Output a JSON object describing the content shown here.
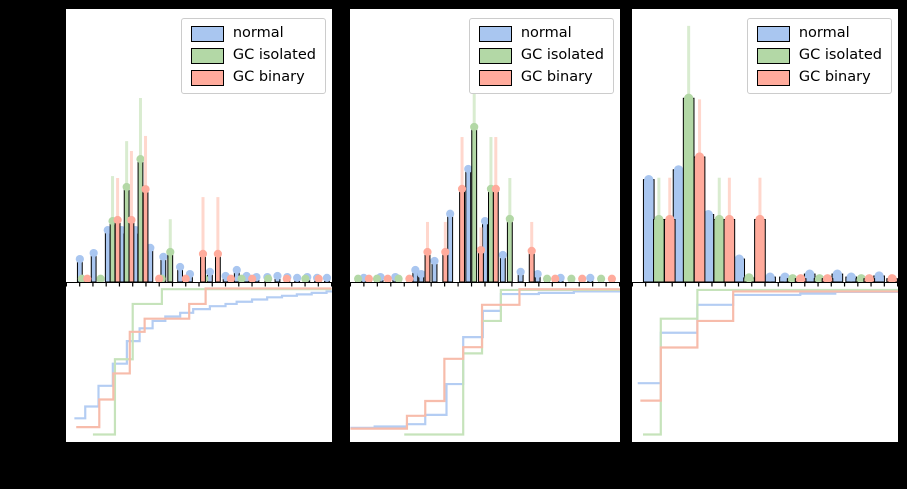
{
  "figure": {
    "background": "#000000",
    "axes_background": "#ffffff",
    "spine_color": "#000000",
    "n_panels": 3,
    "rows_per_panel": [
      "histogram with errorbars",
      "ecdf step plot"
    ],
    "visible_tick_labels": "none (labels hidden against black background)",
    "x_ticks_per_panel": 21
  },
  "legend": {
    "items": [
      {
        "label": "normal",
        "color": "#a9c6f0"
      },
      {
        "label": "GC isolated",
        "color": "#b3d8a6"
      },
      {
        "label": "GC binary",
        "color": "#ffab9c"
      }
    ]
  },
  "series_styles": {
    "normal": {
      "bar": "#a9c6f0",
      "err": "#cfe0f8",
      "line": "#b4cdf3"
    },
    "gc_isolated": {
      "bar": "#b3d8a6",
      "err": "#d9ecd0",
      "line": "#c6e3bb"
    },
    "gc_binary": {
      "bar": "#ffab9c",
      "err": "#ffd7cd",
      "line": "#f7bcab"
    },
    "bar_edge": "#000000"
  },
  "chart_data": [
    {
      "type": "bar",
      "subtype": "histogram_with_errorbars_plus_ecdf",
      "title": "",
      "x_axis": {
        "range": [
          0,
          1
        ],
        "units": "normalized panel fraction"
      },
      "hist": {
        "ylim": [
          0,
          1
        ],
        "bar_width": 0.018,
        "series": {
          "normal": [
            [
              0.052,
              0.084,
              0
            ],
            [
              0.104,
              0.106,
              0
            ],
            [
              0.157,
              0.19,
              0
            ],
            [
              0.209,
              0.19,
              0
            ],
            [
              0.261,
              0.19,
              0
            ],
            [
              0.317,
              0.125,
              0
            ],
            [
              0.366,
              0.092,
              0
            ],
            [
              0.429,
              0.055,
              0
            ],
            [
              0.466,
              0.029,
              0
            ],
            [
              0.541,
              0.037,
              0
            ],
            [
              0.6,
              0.022,
              0
            ],
            [
              0.642,
              0.044,
              0
            ],
            [
              0.679,
              0.022,
              0
            ],
            [
              0.716,
              0.018,
              0
            ],
            [
              0.757,
              0.018,
              0
            ],
            [
              0.795,
              0.022,
              0
            ],
            [
              0.832,
              0.018,
              0
            ],
            [
              0.869,
              0.015,
              0
            ],
            [
              0.907,
              0.018,
              0
            ],
            [
              0.944,
              0.015,
              0
            ],
            [
              0.981,
              0.015,
              0
            ]
          ],
          "gc_isolated": [
            [
              0.06,
              0.012,
              0
            ],
            [
              0.13,
              0.012,
              0
            ],
            [
              0.175,
              0.223,
              0.388
            ],
            [
              0.228,
              0.348,
              0.516
            ],
            [
              0.28,
              0.45,
              0.674
            ],
            [
              0.36,
              0.012,
              0
            ],
            [
              0.392,
              0.11,
              0.23
            ],
            [
              0.52,
              0.012,
              0
            ],
            [
              0.66,
              0.012,
              0
            ],
            [
              0.76,
              0.012,
              0
            ],
            [
              0.9,
              0.012,
              0
            ]
          ],
          "gc_binary": [
            [
              0.08,
              0.012,
              0
            ],
            [
              0.194,
              0.227,
              0.381
            ],
            [
              0.246,
              0.227,
              0.48
            ],
            [
              0.299,
              0.34,
              0.535
            ],
            [
              0.35,
              0.012,
              0
            ],
            [
              0.45,
              0.012,
              0
            ],
            [
              0.515,
              0.103,
              0.311
            ],
            [
              0.571,
              0.103,
              0.311
            ],
            [
              0.62,
              0.012,
              0
            ],
            [
              0.7,
              0.012,
              0
            ],
            [
              0.83,
              0.012,
              0
            ],
            [
              0.95,
              0.012,
              0
            ]
          ]
        }
      },
      "cdf": {
        "ylim": [
          0,
          1
        ],
        "series": {
          "normal": [
            [
              0.03,
              0.11
            ],
            [
              0.071,
              0.19
            ],
            [
              0.121,
              0.33
            ],
            [
              0.175,
              0.48
            ],
            [
              0.228,
              0.633
            ],
            [
              0.276,
              0.72
            ],
            [
              0.325,
              0.77
            ],
            [
              0.373,
              0.8
            ],
            [
              0.429,
              0.825
            ],
            [
              0.478,
              0.85
            ],
            [
              0.541,
              0.87
            ],
            [
              0.6,
              0.885
            ],
            [
              0.642,
              0.9
            ],
            [
              0.7,
              0.915
            ],
            [
              0.757,
              0.93
            ],
            [
              0.813,
              0.94
            ],
            [
              0.869,
              0.95
            ],
            [
              0.925,
              0.96
            ],
            [
              0.981,
              0.97
            ],
            [
              1.0,
              0.975
            ]
          ],
          "gc_isolated": [
            [
              0.1,
              0.0
            ],
            [
              0.183,
              0.51
            ],
            [
              0.25,
              0.885
            ],
            [
              0.36,
              0.985
            ],
            [
              1.0,
              0.985
            ]
          ],
          "gc_binary": [
            [
              0.037,
              0.05
            ],
            [
              0.124,
              0.2375
            ],
            [
              0.177,
              0.414
            ],
            [
              0.239,
              0.696
            ],
            [
              0.295,
              0.785
            ],
            [
              0.463,
              0.885
            ],
            [
              0.525,
              0.99
            ],
            [
              1.0,
              0.99
            ]
          ]
        }
      }
    },
    {
      "type": "bar",
      "subtype": "histogram_with_errorbars_plus_ecdf",
      "title": "",
      "x_axis": {
        "range": [
          0,
          1
        ],
        "units": "normalized panel fraction"
      },
      "hist": {
        "ylim": [
          0,
          1
        ],
        "bar_width": 0.018,
        "series": {
          "normal": [
            [
              0.051,
              0.015,
              0
            ],
            [
              0.113,
              0.018,
              0
            ],
            [
              0.168,
              0.018,
              0
            ],
            [
              0.242,
              0.044,
              0
            ],
            [
              0.264,
              0.029,
              0
            ],
            [
              0.313,
              0.077,
              0
            ],
            [
              0.371,
              0.25,
              0
            ],
            [
              0.438,
              0.414,
              0
            ],
            [
              0.5,
              0.223,
              0
            ],
            [
              0.566,
              0.099,
              0
            ],
            [
              0.632,
              0.037,
              0
            ],
            [
              0.695,
              0.029,
              0
            ],
            [
              0.78,
              0.015,
              0
            ],
            [
              0.89,
              0.015,
              0
            ]
          ],
          "gc_isolated": [
            [
              0.03,
              0.012,
              0
            ],
            [
              0.1,
              0.012,
              0
            ],
            [
              0.18,
              0.012,
              0
            ],
            [
              0.46,
              0.568,
              0.7
            ],
            [
              0.522,
              0.341,
              0.531
            ],
            [
              0.592,
              0.231,
              0.381
            ],
            [
              0.73,
              0.012,
              0
            ],
            [
              0.82,
              0.012,
              0
            ],
            [
              0.93,
              0.012,
              0
            ]
          ],
          "gc_binary": [
            [
              0.07,
              0.012,
              0
            ],
            [
              0.14,
              0.012,
              0
            ],
            [
              0.22,
              0.012,
              0
            ],
            [
              0.287,
              0.11,
              0.22
            ],
            [
              0.353,
              0.11,
              0.22
            ],
            [
              0.415,
              0.341,
              0.531
            ],
            [
              0.485,
              0.117,
              0.2
            ],
            [
              0.54,
              0.341,
              0.531
            ],
            [
              0.673,
              0.114,
              0.22
            ],
            [
              0.76,
              0.012,
              0
            ],
            [
              0.86,
              0.012,
              0
            ],
            [
              0.97,
              0.012,
              0
            ]
          ]
        }
      },
      "cdf": {
        "ylim": [
          0,
          1
        ],
        "series": {
          "normal": [
            [
              0.0,
              0.045
            ],
            [
              0.09,
              0.055
            ],
            [
              0.21,
              0.07
            ],
            [
              0.278,
              0.133
            ],
            [
              0.357,
              0.342
            ],
            [
              0.419,
              0.66
            ],
            [
              0.492,
              0.838
            ],
            [
              0.559,
              0.952
            ],
            [
              0.7,
              0.96
            ],
            [
              0.83,
              0.97
            ],
            [
              1.0,
              0.975
            ]
          ],
          "gc_isolated": [
            [
              0.2,
              0.0
            ],
            [
              0.419,
              0.55
            ],
            [
              0.489,
              0.77
            ],
            [
              0.559,
              0.98
            ],
            [
              1.0,
              0.985
            ]
          ],
          "gc_binary": [
            [
              0.0,
              0.04
            ],
            [
              0.21,
              0.127
            ],
            [
              0.278,
              0.227
            ],
            [
              0.349,
              0.513
            ],
            [
              0.419,
              0.592
            ],
            [
              0.489,
              0.879
            ],
            [
              0.628,
              0.985
            ],
            [
              1.0,
              0.99
            ]
          ]
        }
      }
    },
    {
      "type": "bar",
      "subtype": "histogram_with_errorbars_plus_ecdf",
      "title": "",
      "x_axis": {
        "range": [
          0,
          1
        ],
        "units": "normalized panel fraction"
      },
      "hist": {
        "ylim": [
          0,
          1
        ],
        "bar_width": 0.04,
        "series": {
          "normal": [
            [
              0.063,
              0.375,
              0
            ],
            [
              0.175,
              0.411,
              0
            ],
            [
              0.287,
              0.247,
              0
            ],
            [
              0.403,
              0.084,
              0
            ],
            [
              0.519,
              0.018,
              0
            ],
            [
              0.575,
              0.018,
              0
            ],
            [
              0.668,
              0.029,
              0
            ],
            [
              0.772,
              0.029,
              0
            ],
            [
              0.824,
              0.018,
              0
            ],
            [
              0.929,
              0.022,
              0
            ]
          ],
          "gc_isolated": [
            [
              0.101,
              0.229,
              0.382
            ],
            [
              0.213,
              0.673,
              0.938
            ],
            [
              0.328,
              0.229,
              0.382
            ],
            [
              0.44,
              0.015,
              0
            ],
            [
              0.604,
              0.012,
              0
            ],
            [
              0.705,
              0.012,
              0
            ],
            [
              0.862,
              0.012,
              0
            ]
          ],
          "gc_binary": [
            [
              0.142,
              0.229,
              0.382
            ],
            [
              0.254,
              0.458,
              0.669
            ],
            [
              0.366,
              0.229,
              0.382
            ],
            [
              0.481,
              0.229,
              0.382
            ],
            [
              0.634,
              0.012,
              0
            ],
            [
              0.735,
              0.012,
              0
            ],
            [
              0.892,
              0.012,
              0
            ],
            [
              0.978,
              0.012,
              0
            ]
          ]
        }
      },
      "cdf": {
        "ylim": [
          0,
          1
        ],
        "series": {
          "normal": [
            [
              0.02,
              0.348
            ],
            [
              0.107,
              0.69
            ],
            [
              0.245,
              0.879
            ],
            [
              0.38,
              0.946
            ],
            [
              0.633,
              0.955
            ],
            [
              0.765,
              0.967
            ],
            [
              1.0,
              0.97
            ]
          ],
          "gc_isolated": [
            [
              0.04,
              0.0
            ],
            [
              0.107,
              0.785
            ],
            [
              0.245,
              0.98
            ],
            [
              1.0,
              0.985
            ]
          ],
          "gc_binary": [
            [
              0.03,
              0.23
            ],
            [
              0.107,
              0.59
            ],
            [
              0.245,
              0.77
            ],
            [
              0.38,
              0.97
            ],
            [
              1.0,
              0.975
            ]
          ]
        }
      }
    }
  ]
}
